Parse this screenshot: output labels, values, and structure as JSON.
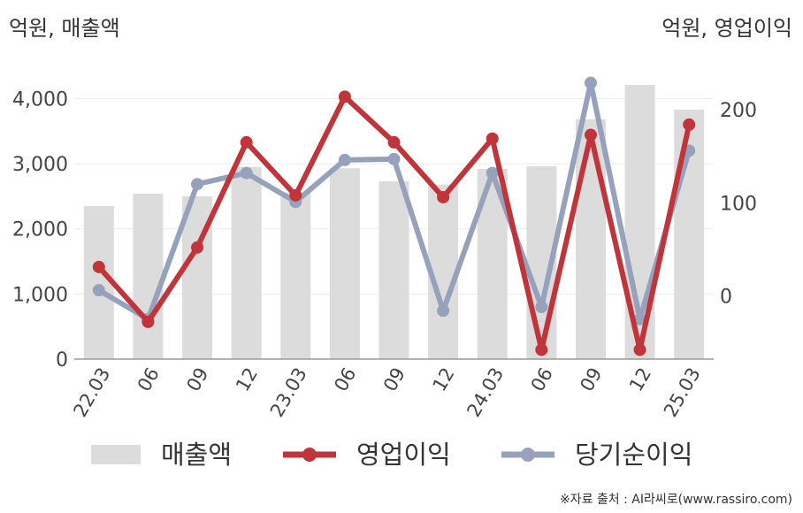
{
  "chart_data": {
    "type": "bar+line",
    "left_axis_title": "억원, 매출액",
    "right_axis_title": "억원, 영업이익",
    "categories": [
      "22.03",
      "06",
      "09",
      "12",
      "23.03",
      "06",
      "09",
      "12",
      "24.03",
      "06",
      "09",
      "12",
      "25.03"
    ],
    "left_ylim": [
      0,
      4400
    ],
    "left_yticks": [
      "0",
      "1,000",
      "2,000",
      "3,000",
      "4,000"
    ],
    "right_ylim": [
      -68,
      240
    ],
    "right_yticks": [
      "0",
      "100",
      "200"
    ],
    "series": [
      {
        "name": "매출액",
        "kind": "bar",
        "axis": "left",
        "color": "#dcdcdc",
        "values": [
          2350,
          2540,
          2500,
          2950,
          2560,
          2930,
          2730,
          2680,
          2920,
          2960,
          3680,
          4210,
          3830
        ]
      },
      {
        "name": "영업이익",
        "kind": "line",
        "axis": "right",
        "color": "#c1343a",
        "values": [
          31,
          -28,
          52,
          165,
          108,
          214,
          165,
          106,
          169,
          -58,
          173,
          -58,
          184
        ]
      },
      {
        "name": "당기순이익",
        "kind": "line",
        "axis": "right",
        "color": "#96a2bc",
        "values": [
          6,
          -25,
          120,
          132,
          101,
          146,
          147,
          -16,
          132,
          -12,
          229,
          -25,
          156
        ]
      }
    ],
    "legend_position": "bottom",
    "source": "※자료 출처 : AI라씨로(www.rassiro.com)"
  }
}
